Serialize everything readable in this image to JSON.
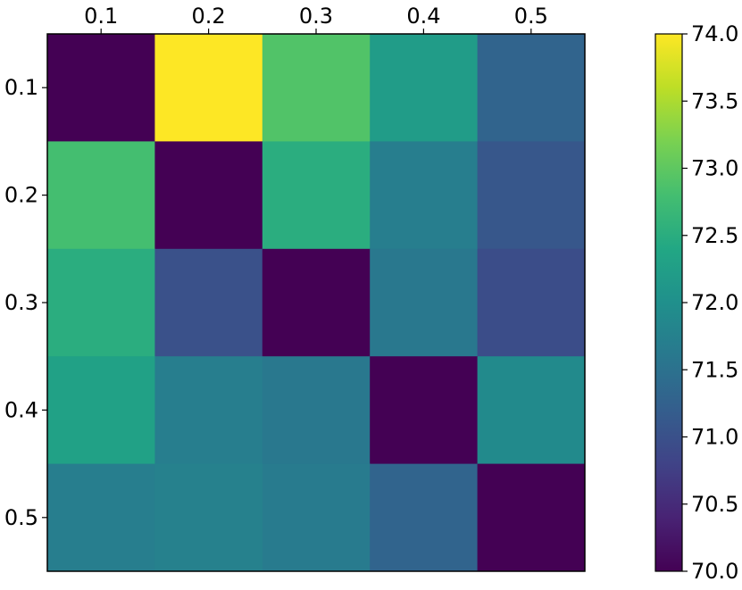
{
  "chart_data": {
    "type": "heatmap",
    "title": "",
    "xlabel": "",
    "ylabel": "",
    "x_categories": [
      "0.1",
      "0.2",
      "0.3",
      "0.4",
      "0.5"
    ],
    "y_categories": [
      "0.1",
      "0.2",
      "0.3",
      "0.4",
      "0.5"
    ],
    "x_axis_position": "top",
    "values": [
      [
        70.0,
        74.0,
        72.9,
        72.2,
        71.3
      ],
      [
        72.8,
        70.0,
        72.5,
        71.7,
        71.1
      ],
      [
        72.5,
        71.0,
        70.0,
        71.6,
        70.95
      ],
      [
        72.3,
        71.7,
        71.6,
        70.0,
        71.9
      ],
      [
        71.7,
        71.75,
        71.65,
        71.3,
        70.0
      ]
    ],
    "colorbar": {
      "min": 70.0,
      "max": 74.0,
      "ticks": [
        "70.0",
        "70.5",
        "71.0",
        "71.5",
        "72.0",
        "72.5",
        "73.0",
        "73.5",
        "74.0"
      ],
      "colormap": "viridis",
      "position": "right"
    },
    "grid": false
  }
}
